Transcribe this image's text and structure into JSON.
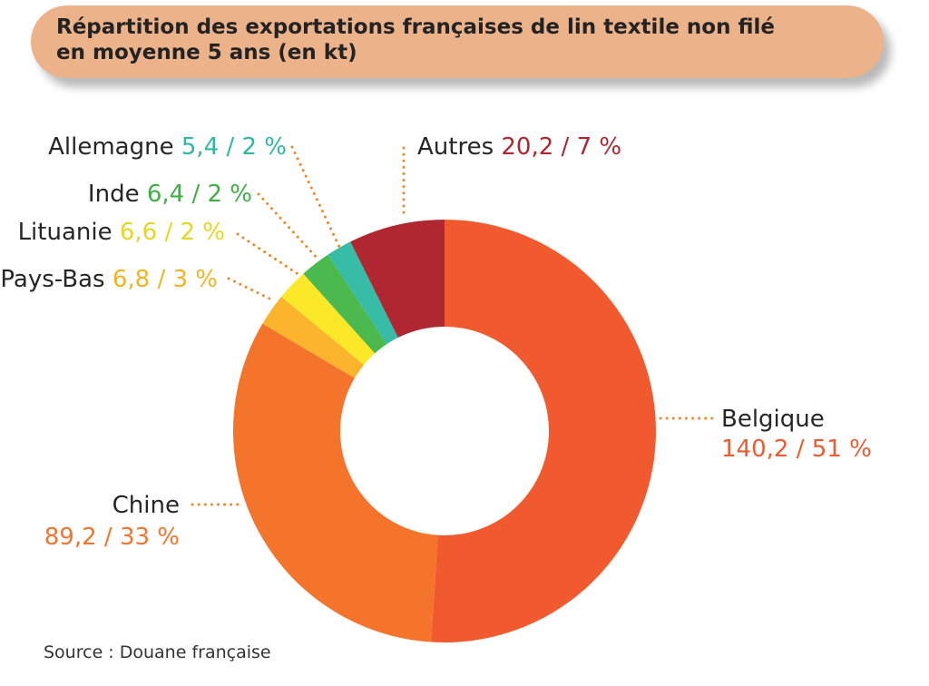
{
  "title": {
    "line1": "Répartition des exportations françaises de lin textile non filé",
    "line2": "en moyenne 5 ans (en kt)"
  },
  "source": "Source : Douane française",
  "chart_data": {
    "type": "pie",
    "donut": true,
    "unit": "kt",
    "slices": [
      {
        "name": "Belgique",
        "value": 140.2,
        "percent": 51,
        "value_label": "140,2 / 51 %",
        "color": "#f15a2e"
      },
      {
        "name": "Chine",
        "value": 89.2,
        "percent": 33,
        "value_label": "89,2 / 33 %",
        "color": "#f4742c"
      },
      {
        "name": "Pays-Bas",
        "value": 6.8,
        "percent": 3,
        "value_label": "6,8 / 3 %",
        "color": "#fbb42c"
      },
      {
        "name": "Lituanie",
        "value": 6.6,
        "percent": 2,
        "value_label": "6,6 / 2 %",
        "color": "#fbe828"
      },
      {
        "name": "Inde",
        "value": 6.4,
        "percent": 2,
        "value_label": "6,4 / 2 %",
        "color": "#4bb94e"
      },
      {
        "name": "Allemagne",
        "value": 5.4,
        "percent": 2,
        "value_label": "5,4 / 2 %",
        "color": "#37bda7"
      },
      {
        "name": "Autres",
        "value": 20.2,
        "percent": 7,
        "value_label": "20,2 / 7 %",
        "color": "#b02732"
      }
    ],
    "label_colors": {
      "Belgique": "#f05a30",
      "Chine": "#f4742c",
      "Pays-Bas": "#f5b324",
      "Lituanie": "#e6d81e",
      "Inde": "#3fae46",
      "Allemagne": "#2fb8a2",
      "Autres": "#b02732"
    },
    "name_color": "#262626",
    "leader_color": "#f0882c"
  }
}
